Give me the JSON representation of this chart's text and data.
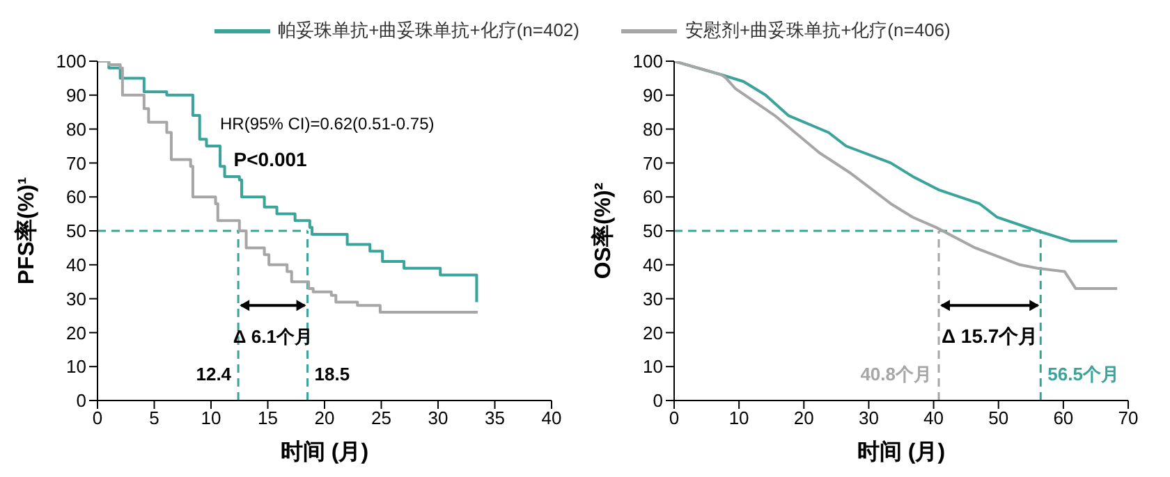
{
  "chart_data": [
    {
      "type": "step",
      "xlabel": "时间 (月)",
      "ylabel": "PFS率(%)¹",
      "xlim": [
        0,
        40
      ],
      "xticks": [
        0,
        5,
        10,
        15,
        20,
        25,
        30,
        35,
        40
      ],
      "ylim": [
        0,
        100
      ],
      "yticks": [
        0,
        10,
        20,
        30,
        40,
        50,
        60,
        70,
        80,
        90,
        100
      ],
      "legend": "top",
      "marker": "none",
      "line_style": "solid",
      "series": [
        {
          "name": "帕妥珠单抗+曲妥珠单抗+化疗(n=402)",
          "color": "#3aa39a",
          "x": [
            0,
            1,
            2,
            4.1,
            6.1,
            8.4,
            9,
            9.6,
            10.8,
            11.2,
            12.5,
            12.7,
            14.7,
            15.8,
            17.4,
            18.7,
            18.9,
            22,
            24,
            25.1,
            27,
            30.2,
            33.3,
            33.4
          ],
          "values": [
            100,
            98,
            95,
            91,
            90,
            84,
            77,
            75,
            69,
            66,
            65,
            60,
            57,
            55,
            53,
            51,
            49,
            46,
            44,
            41,
            39,
            37,
            37,
            29
          ]
        },
        {
          "name": "安慰剂+曲妥珠单抗+化疗(n=406)",
          "color": "#a6a6a6",
          "x": [
            0,
            1,
            2,
            2.2,
            4.1,
            4.5,
            6.1,
            6.5,
            8.2,
            8.4,
            10.4,
            10.6,
            12.5,
            13.1,
            14.7,
            15.1,
            16.7,
            17.1,
            18.6,
            19,
            20.6,
            21,
            22.9,
            24.9,
            33.5
          ],
          "values": [
            100,
            99,
            98,
            90,
            86,
            82,
            79,
            71,
            69,
            60,
            58,
            53,
            50,
            45,
            43,
            40,
            38,
            35,
            33,
            32,
            31,
            29,
            28,
            26,
            26
          ]
        }
      ],
      "ref_lines": [
        {
          "axis": "y",
          "value": 50,
          "color": "#3aa39a",
          "line_style": "dashed"
        },
        {
          "axis": "x",
          "value": 12.4,
          "label": "12.4",
          "color": "#3aa39a",
          "line_style": "dashed"
        },
        {
          "axis": "x",
          "value": 18.5,
          "label": "18.5",
          "color": "#3aa39a",
          "line_style": "dashed"
        }
      ],
      "annotations": [
        "HR(95% CI)=0.62(0.51-0.75)",
        "P<0.001",
        "Δ 6.1个月"
      ]
    },
    {
      "type": "line",
      "xlabel": "时间 (月)",
      "ylabel": "OS率(%)²",
      "xlim": [
        0,
        70
      ],
      "xticks": [
        0,
        10,
        20,
        30,
        40,
        50,
        60,
        70
      ],
      "ylim": [
        0,
        100
      ],
      "yticks": [
        0,
        10,
        20,
        30,
        40,
        50,
        60,
        70,
        80,
        90,
        100
      ],
      "marker": "none",
      "line_style": "solid",
      "series": [
        {
          "color": "#3aa39a",
          "x": [
            0,
            7.3,
            10.7,
            14.1,
            17.6,
            23.8,
            26.5,
            33.4,
            36.8,
            40.9,
            47.1,
            49.8,
            56,
            61.1,
            68.3
          ],
          "values": [
            100,
            96,
            94,
            90,
            84,
            79,
            75,
            70,
            66,
            62,
            58,
            54,
            50,
            47,
            47
          ]
        },
        {
          "color": "#a6a6a6",
          "x": [
            0,
            7.3,
            8,
            9.4,
            15.5,
            22.4,
            27.2,
            33.4,
            36.8,
            40.4,
            46.4,
            53.3,
            56,
            60.2,
            61.9,
            68.3
          ],
          "values": [
            100,
            96,
            95,
            92,
            84,
            73,
            67,
            58,
            54,
            51,
            45,
            40,
            39,
            38,
            33,
            33
          ]
        }
      ],
      "ref_lines": [
        {
          "axis": "y",
          "value": 50,
          "color": "#3aa39a",
          "line_style": "dashed"
        },
        {
          "axis": "x",
          "value": 40.8,
          "label": "40.8个月",
          "color": "#a6a6a6",
          "line_style": "dashed"
        },
        {
          "axis": "x",
          "value": 56.5,
          "label": "56.5个月",
          "color": "#3aa39a",
          "line_style": "dashed"
        }
      ],
      "annotations": [
        "Δ 15.7个月"
      ]
    }
  ]
}
